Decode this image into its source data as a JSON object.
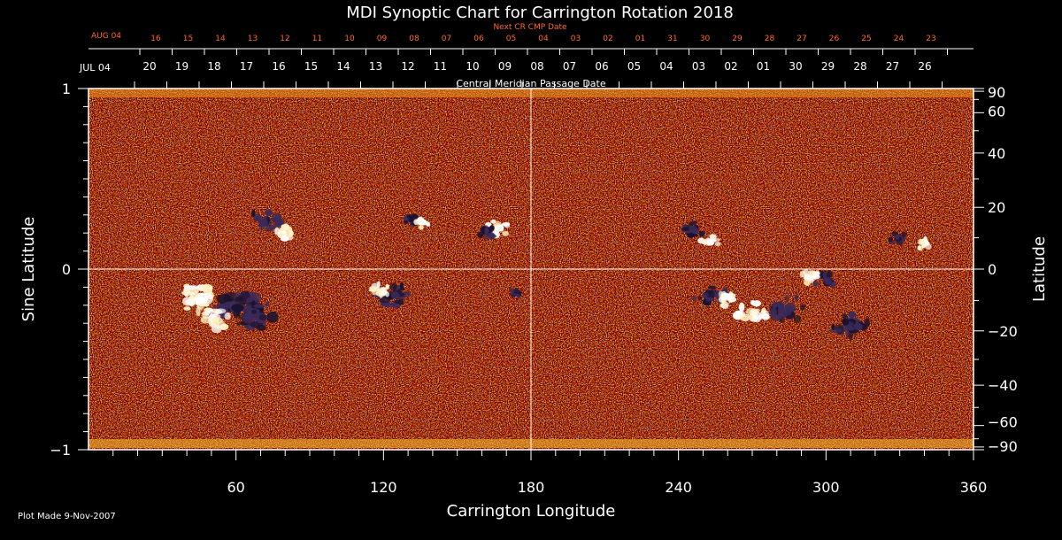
{
  "title": "MDI Synoptic Chart for Carrington Rotation 2018",
  "next_cr_label": "Next CR CMP Date",
  "next_cr_start_label": "AUG 04",
  "next_cr_dates": [
    "16",
    "15",
    "14",
    "13",
    "12",
    "11",
    "10",
    "09",
    "08",
    "07",
    "06",
    "05",
    "04",
    "03",
    "02",
    "01",
    "31",
    "30",
    "29",
    "28",
    "27",
    "26",
    "25",
    "24",
    "23"
  ],
  "cmp_start_label": "JUL 04",
  "cmp_dates": [
    "20",
    "19",
    "18",
    "17",
    "16",
    "15",
    "14",
    "13",
    "12",
    "11",
    "10",
    "09",
    "08",
    "07",
    "06",
    "05",
    "04",
    "03",
    "02",
    "01",
    "30",
    "29",
    "28",
    "27",
    "26"
  ],
  "cmp_axis_label": "Central Meridian Passage Date",
  "footer": "Plot Made  9-Nov-2007",
  "colors": {
    "background": "#000000",
    "text": "#ffffff",
    "next_cr": "#ff6a2a",
    "map_base": "#cf3a08"
  },
  "chart_data": {
    "type": "heatmap",
    "title": "MDI Synoptic Chart for Carrington Rotation 2018",
    "xlabel": "Carrington Longitude",
    "ylabel_left": "Sine Latitude",
    "ylabel_right": "Latitude",
    "xlim": [
      0,
      360
    ],
    "ylim": [
      -1,
      1
    ],
    "x_ticks": [
      60,
      120,
      180,
      240,
      300,
      360
    ],
    "y_left_ticks": [
      1,
      0,
      -1
    ],
    "y_right_ticks": [
      90,
      60,
      40,
      20,
      0,
      -20,
      -40,
      -60,
      -90
    ],
    "crosshair": {
      "x": 180,
      "y": 0
    },
    "regions": [
      {
        "lon": 45,
        "sinlat": -0.16,
        "polarity": "positive",
        "size": 1.2
      },
      {
        "lon": 58,
        "sinlat": -0.2,
        "polarity": "negative",
        "size": 1.5
      },
      {
        "lon": 67,
        "sinlat": -0.25,
        "polarity": "negative",
        "size": 1.1
      },
      {
        "lon": 52,
        "sinlat": -0.28,
        "polarity": "positive",
        "size": 0.8
      },
      {
        "lon": 72,
        "sinlat": 0.27,
        "polarity": "negative",
        "size": 0.8
      },
      {
        "lon": 80,
        "sinlat": 0.21,
        "polarity": "positive",
        "size": 0.6
      },
      {
        "lon": 125,
        "sinlat": -0.14,
        "polarity": "negative",
        "size": 0.9
      },
      {
        "lon": 119,
        "sinlat": -0.12,
        "polarity": "positive",
        "size": 0.5
      },
      {
        "lon": 131,
        "sinlat": 0.27,
        "polarity": "negative",
        "size": 0.4
      },
      {
        "lon": 136,
        "sinlat": 0.26,
        "polarity": "positive",
        "size": 0.4
      },
      {
        "lon": 167,
        "sinlat": 0.23,
        "polarity": "positive",
        "size": 0.6
      },
      {
        "lon": 162,
        "sinlat": 0.2,
        "polarity": "negative",
        "size": 0.5
      },
      {
        "lon": 174,
        "sinlat": -0.13,
        "polarity": "negative",
        "size": 0.3
      },
      {
        "lon": 246,
        "sinlat": 0.21,
        "polarity": "negative",
        "size": 0.6
      },
      {
        "lon": 253,
        "sinlat": 0.15,
        "polarity": "positive",
        "size": 0.5
      },
      {
        "lon": 253,
        "sinlat": -0.14,
        "polarity": "negative",
        "size": 0.9
      },
      {
        "lon": 259,
        "sinlat": -0.16,
        "polarity": "positive",
        "size": 0.6
      },
      {
        "lon": 270,
        "sinlat": -0.24,
        "polarity": "positive",
        "size": 0.8
      },
      {
        "lon": 300,
        "sinlat": -0.06,
        "polarity": "negative",
        "size": 0.6
      },
      {
        "lon": 293,
        "sinlat": -0.04,
        "polarity": "positive",
        "size": 0.5
      },
      {
        "lon": 330,
        "sinlat": 0.17,
        "polarity": "negative",
        "size": 0.5
      },
      {
        "lon": 340,
        "sinlat": 0.14,
        "polarity": "positive",
        "size": 0.4
      },
      {
        "lon": 310,
        "sinlat": -0.3,
        "polarity": "negative",
        "size": 1.1
      },
      {
        "lon": 285,
        "sinlat": -0.22,
        "polarity": "negative",
        "size": 0.9
      }
    ]
  }
}
